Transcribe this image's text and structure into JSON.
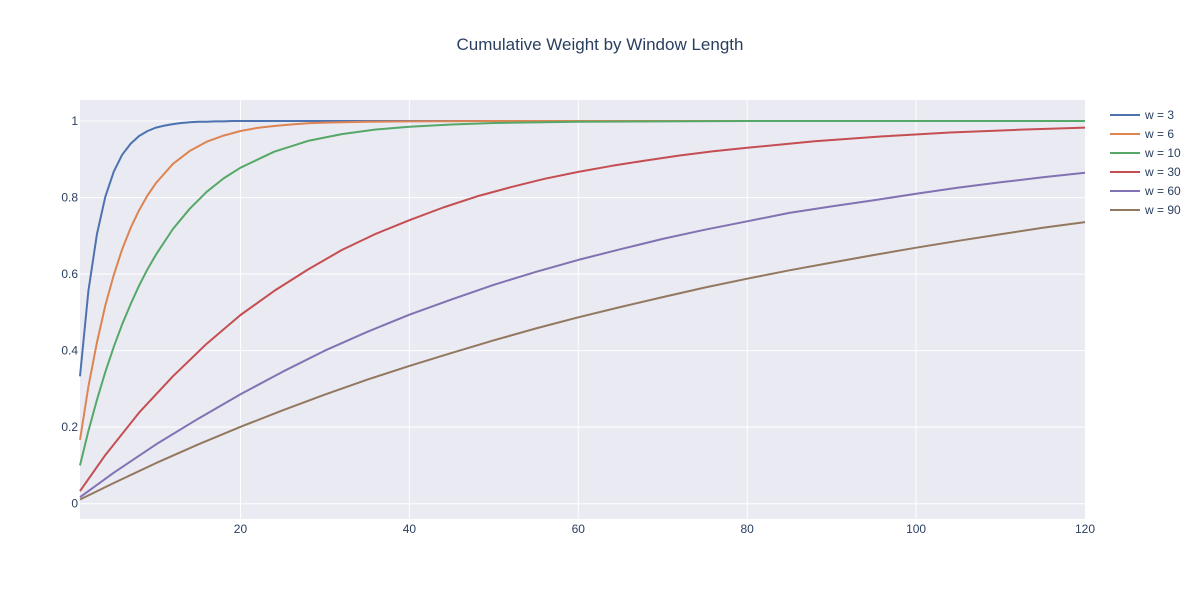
{
  "chart_data": {
    "type": "line",
    "title": "Cumulative Weight by Window Length",
    "xlabel": "",
    "ylabel": "",
    "xlim": [
      1,
      120
    ],
    "ylim": [
      -0.04,
      1.055
    ],
    "x_ticks": [
      20,
      40,
      60,
      80,
      100,
      120
    ],
    "y_ticks": [
      0,
      0.2,
      0.4,
      0.6,
      0.8,
      1
    ],
    "x_tick_labels": [
      "20",
      "40",
      "60",
      "80",
      "100",
      "120"
    ],
    "y_tick_labels": [
      "0",
      "0.2",
      "0.4",
      "0.6",
      "0.8",
      "1"
    ],
    "grid": true,
    "legend_position": "top-right",
    "series": [
      {
        "name": "w = 3",
        "window": 3,
        "color": "#4c72b0",
        "x": [
          1,
          2,
          3,
          4,
          5,
          6,
          7,
          8,
          9,
          10,
          11,
          12,
          13,
          14,
          15,
          16,
          17,
          18,
          19,
          20,
          25,
          30,
          40,
          50,
          60,
          80,
          100,
          120
        ],
        "y": [
          0.333,
          0.556,
          0.704,
          0.802,
          0.868,
          0.912,
          0.941,
          0.961,
          0.974,
          0.983,
          0.988,
          0.992,
          0.995,
          0.997,
          0.998,
          0.998,
          0.999,
          0.999,
          1.0,
          1.0,
          1.0,
          1.0,
          1.0,
          1.0,
          1.0,
          1.0,
          1.0,
          1.0
        ]
      },
      {
        "name": "w = 6",
        "window": 6,
        "color": "#dd8452",
        "x": [
          1,
          2,
          3,
          4,
          5,
          6,
          7,
          8,
          9,
          10,
          12,
          14,
          16,
          18,
          20,
          22,
          24,
          26,
          28,
          30,
          35,
          40,
          50,
          60,
          80,
          100,
          120
        ],
        "y": [
          0.167,
          0.306,
          0.421,
          0.518,
          0.598,
          0.665,
          0.721,
          0.767,
          0.806,
          0.838,
          0.888,
          0.922,
          0.946,
          0.962,
          0.974,
          0.982,
          0.987,
          0.991,
          0.994,
          0.996,
          0.998,
          0.999,
          1.0,
          1.0,
          1.0,
          1.0,
          1.0
        ]
      },
      {
        "name": "w = 10",
        "window": 10,
        "color": "#55a868",
        "x": [
          1,
          2,
          3,
          4,
          5,
          6,
          7,
          8,
          9,
          10,
          12,
          14,
          16,
          18,
          20,
          24,
          28,
          32,
          36,
          40,
          45,
          50,
          60,
          70,
          80,
          100,
          120
        ],
        "y": [
          0.1,
          0.19,
          0.271,
          0.344,
          0.41,
          0.469,
          0.522,
          0.57,
          0.613,
          0.651,
          0.718,
          0.771,
          0.815,
          0.85,
          0.878,
          0.92,
          0.948,
          0.966,
          0.978,
          0.985,
          0.991,
          0.995,
          0.998,
          0.999,
          1.0,
          1.0,
          1.0
        ]
      },
      {
        "name": "w = 30",
        "window": 30,
        "color": "#c44e52",
        "x": [
          1,
          4,
          8,
          12,
          16,
          20,
          24,
          28,
          32,
          36,
          40,
          44,
          48,
          52,
          56,
          60,
          64,
          68,
          72,
          76,
          80,
          88,
          96,
          104,
          112,
          120
        ],
        "y": [
          0.033,
          0.127,
          0.238,
          0.333,
          0.418,
          0.493,
          0.556,
          0.612,
          0.663,
          0.705,
          0.741,
          0.774,
          0.803,
          0.827,
          0.849,
          0.867,
          0.883,
          0.897,
          0.91,
          0.921,
          0.93,
          0.947,
          0.96,
          0.97,
          0.977,
          0.983
        ]
      },
      {
        "name": "w = 60",
        "window": 60,
        "color": "#8172b3",
        "x": [
          1,
          5,
          10,
          15,
          20,
          25,
          30,
          35,
          40,
          45,
          50,
          55,
          60,
          65,
          70,
          75,
          80,
          85,
          90,
          95,
          100,
          105,
          110,
          115,
          120
        ],
        "y": [
          0.017,
          0.081,
          0.155,
          0.222,
          0.286,
          0.345,
          0.4,
          0.449,
          0.494,
          0.534,
          0.572,
          0.606,
          0.637,
          0.665,
          0.692,
          0.716,
          0.738,
          0.76,
          0.777,
          0.793,
          0.81,
          0.826,
          0.84,
          0.853,
          0.865
        ]
      },
      {
        "name": "w = 90",
        "window": 90,
        "color": "#937860",
        "x": [
          1,
          5,
          10,
          15,
          20,
          25,
          30,
          35,
          40,
          45,
          50,
          55,
          60,
          65,
          70,
          75,
          80,
          85,
          90,
          95,
          100,
          105,
          110,
          115,
          120
        ],
        "y": [
          0.011,
          0.054,
          0.106,
          0.155,
          0.201,
          0.244,
          0.285,
          0.324,
          0.36,
          0.394,
          0.427,
          0.458,
          0.487,
          0.514,
          0.54,
          0.565,
          0.588,
          0.61,
          0.63,
          0.65,
          0.669,
          0.687,
          0.704,
          0.721,
          0.736
        ]
      }
    ]
  }
}
